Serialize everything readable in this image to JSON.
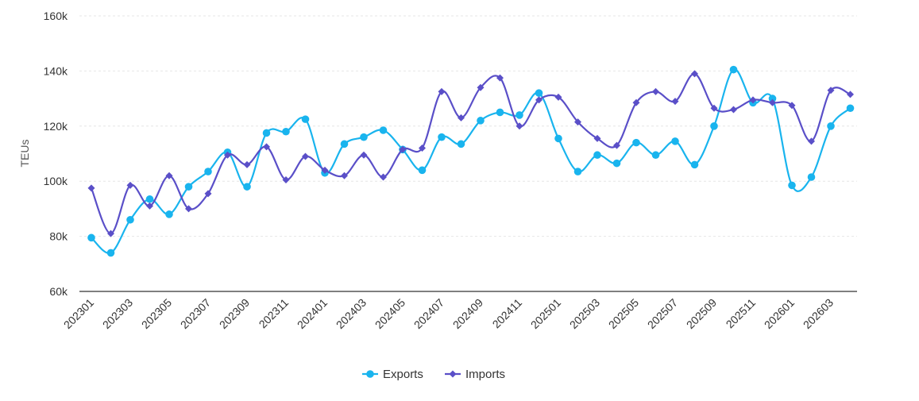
{
  "chart_data": {
    "type": "line",
    "ylabel": "TEUs",
    "ylim": [
      60000,
      160000
    ],
    "y_ticks": [
      {
        "value": 60000,
        "label": "60k"
      },
      {
        "value": 80000,
        "label": "80k"
      },
      {
        "value": 100000,
        "label": "100k"
      },
      {
        "value": 120000,
        "label": "120k"
      },
      {
        "value": 140000,
        "label": "140k"
      },
      {
        "value": 160000,
        "label": "160k"
      }
    ],
    "categories": [
      "202301",
      "202302",
      "202303",
      "202304",
      "202305",
      "202306",
      "202307",
      "202308",
      "202309",
      "202310",
      "202311",
      "202312",
      "202401",
      "202402",
      "202403",
      "202404",
      "202405",
      "202406",
      "202407",
      "202408",
      "202409",
      "202410",
      "202411",
      "202412",
      "202501",
      "202502",
      "202503",
      "202504",
      "202505",
      "202506",
      "202507",
      "202508",
      "202509",
      "202510",
      "202511",
      "202512",
      "202601",
      "202602",
      "202603",
      "202604"
    ],
    "x_tick_labels": [
      "202301",
      "202303",
      "202305",
      "202307",
      "202309",
      "202311",
      "202401",
      "202403",
      "202405",
      "202407",
      "202409",
      "202411",
      "202501",
      "202503",
      "202505",
      "202507",
      "202509",
      "202511",
      "202601",
      "202603"
    ],
    "legend_position": "bottom-center",
    "grid": "horizontal-dashed",
    "series": [
      {
        "name": "Exports",
        "color": "#19b4ee",
        "marker": "circle",
        "values": [
          79500,
          74000,
          86000,
          93500,
          88000,
          98000,
          103500,
          110500,
          98000,
          117500,
          118000,
          122500,
          103000,
          113500,
          116000,
          118500,
          111500,
          104000,
          116000,
          113500,
          122000,
          125000,
          124000,
          132000,
          115500,
          103500,
          109500,
          106500,
          114000,
          109500,
          114500,
          106000,
          120000,
          140500,
          128500,
          130000,
          98500,
          101500,
          120000,
          126500
        ]
      },
      {
        "name": "Imports",
        "color": "#5a4fc8",
        "marker": "diamond",
        "values": [
          97500,
          81000,
          98500,
          91000,
          102000,
          90000,
          95500,
          109500,
          106000,
          112500,
          100500,
          109000,
          104000,
          102000,
          109500,
          101500,
          111500,
          112000,
          132500,
          123000,
          134000,
          137500,
          120000,
          129500,
          130500,
          121500,
          115500,
          113000,
          128500,
          132500,
          129000,
          139000,
          126500,
          126000,
          129500,
          128500,
          127500,
          114500,
          133000,
          131500
        ]
      }
    ]
  }
}
